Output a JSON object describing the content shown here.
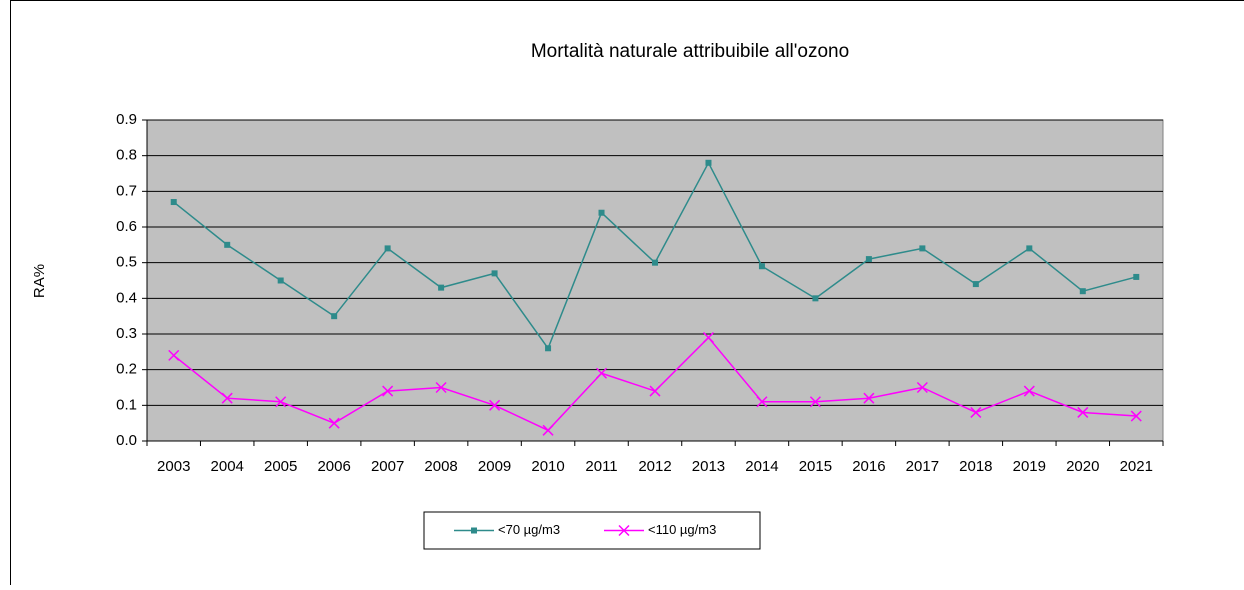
{
  "chart_data": {
    "type": "line",
    "title": "Mortalità naturale attribuibile all'ozono",
    "y_label": "RA%",
    "categories": [
      "2003",
      "2004",
      "2005",
      "2006",
      "2007",
      "2008",
      "2009",
      "2010",
      "2011",
      "2012",
      "2013",
      "2014",
      "2015",
      "2016",
      "2017",
      "2018",
      "2019",
      "2020",
      "2021"
    ],
    "series": [
      {
        "name": "<70 µg/m3",
        "color": "#2e8b8b",
        "marker": "square",
        "values": [
          0.67,
          0.55,
          0.45,
          0.35,
          0.54,
          0.43,
          0.47,
          0.26,
          0.64,
          0.5,
          0.78,
          0.49,
          0.4,
          0.51,
          0.54,
          0.44,
          0.54,
          0.42,
          0.46
        ]
      },
      {
        "name": "<110 µg/m3",
        "color": "#ff00ff",
        "marker": "x",
        "values": [
          0.24,
          0.12,
          0.11,
          0.05,
          0.14,
          0.15,
          0.1,
          0.03,
          0.19,
          0.14,
          0.29,
          0.11,
          0.11,
          0.12,
          0.15,
          0.08,
          0.14,
          0.08,
          0.07
        ]
      }
    ],
    "ylim": [
      0,
      0.9
    ],
    "yticks": [
      {
        "value": 0,
        "label": "0.0"
      },
      0.1,
      0.2,
      0.3,
      0.4,
      0.5,
      0.6,
      0.7,
      0.8,
      0.9
    ],
    "grid": true,
    "plot_background": "#c0c0c0",
    "legend": "bottom"
  }
}
